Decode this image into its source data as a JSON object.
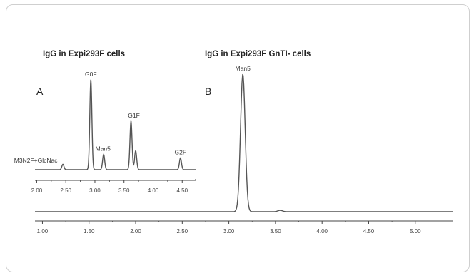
{
  "chart_data": [
    {
      "type": "line",
      "panel": "A",
      "title": "IgG in Expi293F cells",
      "xlim": [
        1.97,
        4.73
      ],
      "xticks": [
        "2.00",
        "2.50",
        "3.00",
        "3.50",
        "4.00",
        "4.50"
      ],
      "xtick_values": [
        2.0,
        2.5,
        3.0,
        3.5,
        4.0,
        4.5
      ],
      "peaks": [
        {
          "label": "M3N2F+GlcNac",
          "x": 2.45,
          "height": 0.06
        },
        {
          "label": "G0F",
          "x": 2.93,
          "height": 1.0
        },
        {
          "label": "Man5",
          "x": 3.15,
          "height": 0.17
        },
        {
          "label": "G1F",
          "x": 3.62,
          "height": 0.54
        },
        {
          "label": "",
          "x": 3.7,
          "height": 0.21
        },
        {
          "label": "G2F",
          "x": 4.47,
          "height": 0.13
        }
      ]
    },
    {
      "type": "line",
      "panel": "B",
      "title": "IgG in Expi293F GnTI- cells",
      "xlim": [
        0.92,
        5.4
      ],
      "xticks": [
        "1.00",
        "1.50",
        "2.00",
        "2.50",
        "3.00",
        "3.50",
        "4.00",
        "4.50",
        "5.00"
      ],
      "xtick_values": [
        1.0,
        1.5,
        2.0,
        2.5,
        3.0,
        3.5,
        4.0,
        4.5,
        5.0
      ],
      "peaks": [
        {
          "label": "Man5",
          "x": 3.15,
          "height": 1.0
        },
        {
          "label": "",
          "x": 3.55,
          "height": 0.01
        }
      ]
    }
  ]
}
